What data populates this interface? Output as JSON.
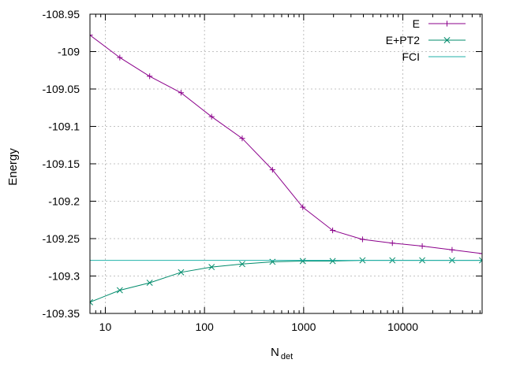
{
  "chart_data": {
    "type": "line",
    "xlabel": "N",
    "xlabel_sub": "det",
    "ylabel": "Energy",
    "x_scale": "log",
    "xlim": [
      7,
      63000
    ],
    "ylim": [
      -109.35,
      -108.95
    ],
    "grid": true,
    "legend_position": "top-right",
    "x_ticks": [
      {
        "value": 10,
        "label": "10"
      },
      {
        "value": 100,
        "label": "100"
      },
      {
        "value": 1000,
        "label": "1000"
      },
      {
        "value": 10000,
        "label": "10000"
      }
    ],
    "y_ticks": [
      {
        "value": -108.95,
        "label": "-108.95"
      },
      {
        "value": -109.0,
        "label": "-109"
      },
      {
        "value": -109.05,
        "label": "-109.05"
      },
      {
        "value": -109.1,
        "label": "-109.1"
      },
      {
        "value": -109.15,
        "label": "-109.15"
      },
      {
        "value": -109.2,
        "label": "-109.2"
      },
      {
        "value": -109.25,
        "label": "-109.25"
      },
      {
        "value": -109.3,
        "label": "-109.3"
      },
      {
        "value": -109.35,
        "label": "-109.35"
      }
    ],
    "series": [
      {
        "name": "E",
        "color": "#8b008b",
        "marker": "plus",
        "x": [
          7,
          14,
          28,
          58,
          118,
          240,
          485,
          980,
          1960,
          3920,
          7840,
          15680,
          31360,
          63000
        ],
        "y": [
          -108.978,
          -109.008,
          -109.033,
          -109.055,
          -109.087,
          -109.116,
          -109.158,
          -109.208,
          -109.239,
          -109.251,
          -109.256,
          -109.26,
          -109.265,
          -109.27
        ]
      },
      {
        "name": "E+PT2",
        "color": "#008b6b",
        "marker": "cross",
        "x": [
          7,
          14,
          28,
          58,
          118,
          240,
          485,
          980,
          1960,
          3920,
          7840,
          15680,
          31360,
          63000
        ],
        "y": [
          -109.335,
          -109.319,
          -109.309,
          -109.295,
          -109.288,
          -109.284,
          -109.281,
          -109.28,
          -109.28,
          -109.279,
          -109.279,
          -109.279,
          -109.279,
          -109.279
        ]
      },
      {
        "name": "FCI",
        "color": "#20b2aa",
        "marker": "none",
        "x": [
          7,
          63000
        ],
        "y": [
          -109.279,
          -109.279
        ]
      }
    ]
  }
}
